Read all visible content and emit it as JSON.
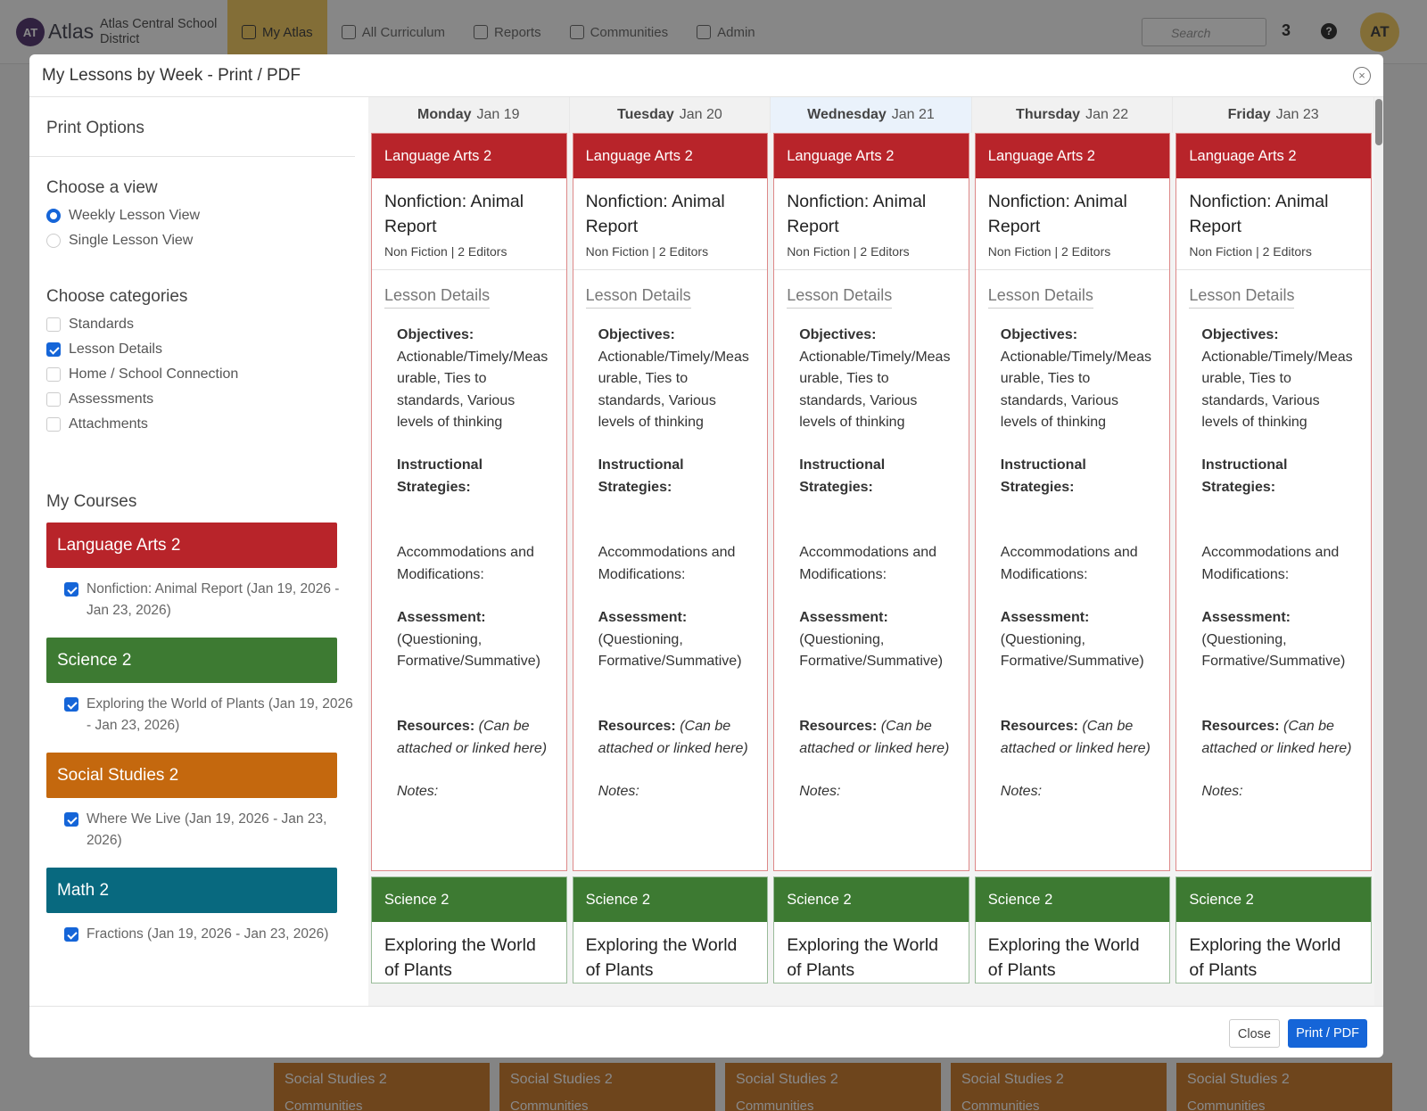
{
  "navbar": {
    "logo": "AT",
    "brand": "Atlas",
    "district": "Atlas Central School District",
    "items": [
      "My Atlas",
      "All Curriculum",
      "Reports",
      "Communities",
      "Admin"
    ],
    "active_item": 0,
    "search_placeholder": "Search",
    "mail_count": "3",
    "help": "?",
    "avatar": "AT"
  },
  "background": {
    "cards": [
      {
        "course": "Social Studies 2",
        "unit": "Communities"
      },
      {
        "course": "Social Studies 2",
        "unit": "Communities"
      },
      {
        "course": "Social Studies 2",
        "unit": "Communities"
      },
      {
        "course": "Social Studies 2",
        "unit": "Communities"
      },
      {
        "course": "Social Studies 2",
        "unit": "Communities"
      }
    ]
  },
  "modal": {
    "title": "My Lessons by Week - Print / PDF",
    "print_options": {
      "heading": "Print Options",
      "view_heading": "Choose a view",
      "views": [
        {
          "label": "Weekly Lesson View",
          "checked": true
        },
        {
          "label": "Single Lesson View",
          "checked": false
        }
      ],
      "categories_heading": "Choose categories",
      "categories": [
        {
          "label": "Standards",
          "checked": false
        },
        {
          "label": "Lesson Details",
          "checked": true
        },
        {
          "label": "Home / School Connection",
          "checked": false
        },
        {
          "label": "Assessments",
          "checked": false
        },
        {
          "label": "Attachments",
          "checked": false
        }
      ],
      "courses_heading": "My Courses",
      "courses": [
        {
          "name": "Language Arts 2",
          "color": "#b8242a",
          "unit": "Nonfiction: Animal Report (Jan 19, 2026 - Jan 23, 2026)",
          "checked": true
        },
        {
          "name": "Science 2",
          "color": "#3d7a32",
          "unit": "Exploring the World of Plants (Jan 19, 2026 - Jan 23, 2026)",
          "checked": true
        },
        {
          "name": "Social Studies 2",
          "color": "#c4680e",
          "unit": "Where We Live (Jan 19, 2026 - Jan 23, 2026)",
          "checked": true
        },
        {
          "name": "Math 2",
          "color": "#08697f",
          "unit": "Fractions (Jan 19, 2026 - Jan 23, 2026)",
          "checked": true
        }
      ]
    },
    "days": [
      {
        "day": "Monday",
        "date": "Jan 19",
        "highlighted": false
      },
      {
        "day": "Tuesday",
        "date": "Jan 20",
        "highlighted": false
      },
      {
        "day": "Wednesday",
        "date": "Jan 21",
        "highlighted": true
      },
      {
        "day": "Thursday",
        "date": "Jan 22",
        "highlighted": false
      },
      {
        "day": "Friday",
        "date": "Jan 23",
        "highlighted": false
      }
    ],
    "lessons": [
      {
        "course": "Language Arts 2",
        "color": "#b8242a",
        "title": "Nonfiction: Animal Report",
        "meta": "Non Fiction | 2 Editors",
        "section": "Lesson Details",
        "fields": [
          {
            "label": "Objectives:",
            "text": "Actionable/Timely/Measurable, Ties to standards, Various levels of thinking"
          },
          {
            "label": "Instructional Strategies:"
          },
          {
            "label": "Accommodations and Modifications:"
          },
          {
            "label": "Assessment:",
            "text": "(Questioning, Formative/Summative)"
          },
          {
            "label": "Resources:",
            "text": "(Can be attached or linked here)"
          },
          {
            "label": "Notes:"
          }
        ]
      },
      {
        "course": "Science 2",
        "color": "#3d7a32",
        "title": "Exploring the World of Plants"
      }
    ],
    "buttons": {
      "close": "Close",
      "print": "Print / PDF"
    }
  }
}
